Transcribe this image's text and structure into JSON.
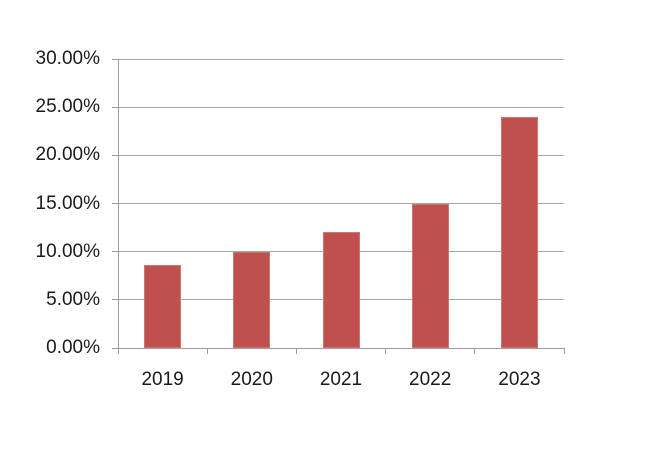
{
  "chart_data": {
    "type": "bar",
    "title": "",
    "xlabel": "",
    "ylabel": "",
    "categories": [
      "2019",
      "2020",
      "2021",
      "2022",
      "2023"
    ],
    "values": [
      8.6,
      10,
      12,
      15,
      24
    ],
    "value_unit": "%",
    "ylim": [
      0,
      30
    ],
    "ytick_step": 5,
    "ytick_labels": [
      "0.00%",
      "5.00%",
      "10.00%",
      "15.00%",
      "20.00%",
      "25.00%",
      "30.00%"
    ],
    "grid": "horizontal",
    "legend": "none",
    "colors": {
      "bar_fill": "#C0504D",
      "bar_edge": "#CD7572",
      "gridline": "#A6A6A6",
      "axis": "#9C9C9C",
      "label_text": "#1A1A1A",
      "background": "#FFFFFF"
    }
  }
}
